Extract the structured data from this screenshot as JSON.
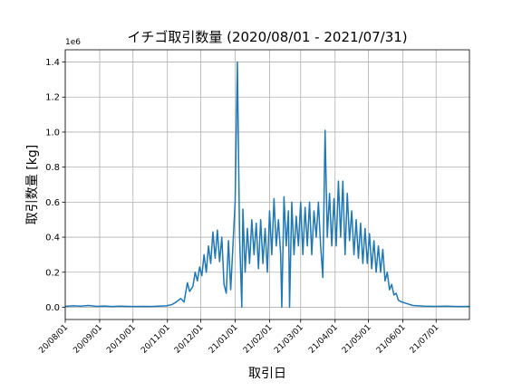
{
  "chart_data": {
    "type": "line",
    "title": "イチゴ取引数量 (2020/08/01 - 2021/07/31)",
    "x_label": "取引日",
    "y_label": "取引数量 [kg]",
    "y_offset_label": "1e6",
    "x": [
      "2020-08-01",
      "2020-08-08",
      "2020-08-15",
      "2020-08-22",
      "2020-08-29",
      "2020-09-05",
      "2020-09-12",
      "2020-09-19",
      "2020-09-26",
      "2020-10-03",
      "2020-10-10",
      "2020-10-17",
      "2020-10-24",
      "2020-10-31",
      "2020-11-05",
      "2020-11-09",
      "2020-11-13",
      "2020-11-16",
      "2020-11-19",
      "2020-11-21",
      "2020-11-24",
      "2020-11-26",
      "2020-11-28",
      "2020-11-30",
      "2020-12-02",
      "2020-12-04",
      "2020-12-06",
      "2020-12-08",
      "2020-12-10",
      "2020-12-12",
      "2020-12-14",
      "2020-12-16",
      "2020-12-18",
      "2020-12-20",
      "2020-12-22",
      "2020-12-24",
      "2020-12-26",
      "2020-12-28",
      "2020-12-30",
      "2021-01-01",
      "2021-01-03",
      "2021-01-05",
      "2021-01-07",
      "2021-01-08",
      "2021-01-10",
      "2021-01-12",
      "2021-01-14",
      "2021-01-16",
      "2021-01-18",
      "2021-01-20",
      "2021-01-22",
      "2021-01-24",
      "2021-01-26",
      "2021-01-28",
      "2021-01-30",
      "2021-02-01",
      "2021-02-03",
      "2021-02-05",
      "2021-02-07",
      "2021-02-09",
      "2021-02-11",
      "2021-02-12",
      "2021-02-14",
      "2021-02-16",
      "2021-02-18",
      "2021-02-19",
      "2021-02-21",
      "2021-02-23",
      "2021-02-25",
      "2021-02-27",
      "2021-03-01",
      "2021-03-03",
      "2021-03-05",
      "2021-03-07",
      "2021-03-09",
      "2021-03-11",
      "2021-03-13",
      "2021-03-15",
      "2021-03-17",
      "2021-03-19",
      "2021-03-21",
      "2021-03-23",
      "2021-03-25",
      "2021-03-27",
      "2021-03-29",
      "2021-03-31",
      "2021-04-02",
      "2021-04-04",
      "2021-04-06",
      "2021-04-08",
      "2021-04-10",
      "2021-04-12",
      "2021-04-14",
      "2021-04-16",
      "2021-04-18",
      "2021-04-20",
      "2021-04-22",
      "2021-04-24",
      "2021-04-26",
      "2021-04-28",
      "2021-04-30",
      "2021-05-02",
      "2021-05-04",
      "2021-05-06",
      "2021-05-08",
      "2021-05-10",
      "2021-05-12",
      "2021-05-14",
      "2021-05-16",
      "2021-05-18",
      "2021-05-20",
      "2021-05-22",
      "2021-05-24",
      "2021-05-26",
      "2021-05-28",
      "2021-05-31",
      "2021-06-05",
      "2021-06-10",
      "2021-06-15",
      "2021-06-20",
      "2021-06-30",
      "2021-07-10",
      "2021-07-20",
      "2021-07-31"
    ],
    "series": [
      {
        "name": "取引数量",
        "color": "#1f77b4",
        "values": [
          5000,
          8000,
          6000,
          10000,
          5000,
          7000,
          4000,
          6000,
          5000,
          4000,
          5000,
          4000,
          6000,
          8000,
          15000,
          30000,
          50000,
          30000,
          140000,
          90000,
          120000,
          200000,
          150000,
          230000,
          180000,
          300000,
          200000,
          350000,
          250000,
          430000,
          280000,
          440000,
          260000,
          400000,
          130000,
          80000,
          380000,
          100000,
          350000,
          600000,
          1400000,
          400000,
          0,
          560000,
          200000,
          450000,
          250000,
          500000,
          300000,
          480000,
          220000,
          500000,
          250000,
          450000,
          200000,
          550000,
          300000,
          620000,
          350000,
          500000,
          300000,
          0,
          630000,
          350000,
          550000,
          0,
          600000,
          300000,
          520000,
          350000,
          600000,
          300000,
          570000,
          350000,
          600000,
          300000,
          550000,
          400000,
          600000,
          350000,
          170000,
          1010000,
          400000,
          650000,
          350000,
          620000,
          350000,
          720000,
          400000,
          720000,
          300000,
          650000,
          380000,
          550000,
          300000,
          500000,
          280000,
          480000,
          250000,
          450000,
          250000,
          420000,
          220000,
          380000,
          200000,
          350000,
          200000,
          330000,
          150000,
          200000,
          100000,
          130000,
          70000,
          80000,
          40000,
          30000,
          20000,
          10000,
          8000,
          6000,
          5000,
          6000,
          4000,
          5000
        ]
      }
    ],
    "xlim": [
      "2020-08-01",
      "2021-07-31"
    ],
    "xticks": [
      {
        "value": "2020-08-01",
        "label": "20/08/01"
      },
      {
        "value": "2020-09-01",
        "label": "20/09/01"
      },
      {
        "value": "2020-10-01",
        "label": "20/10/01"
      },
      {
        "value": "2020-11-01",
        "label": "20/11/01"
      },
      {
        "value": "2020-12-01",
        "label": "20/12/01"
      },
      {
        "value": "2021-01-01",
        "label": "21/01/01"
      },
      {
        "value": "2021-02-01",
        "label": "21/02/01"
      },
      {
        "value": "2021-03-01",
        "label": "21/03/01"
      },
      {
        "value": "2021-04-01",
        "label": "21/04/01"
      },
      {
        "value": "2021-05-01",
        "label": "21/05/01"
      },
      {
        "value": "2021-06-01",
        "label": "21/06/01"
      },
      {
        "value": "2021-07-01",
        "label": "21/07/01"
      }
    ],
    "ylim": [
      -70000,
      1470000
    ],
    "yticks": [
      {
        "value": 0,
        "label": "0.0"
      },
      {
        "value": 200000,
        "label": "0.2"
      },
      {
        "value": 400000,
        "label": "0.4"
      },
      {
        "value": 600000,
        "label": "0.6"
      },
      {
        "value": 800000,
        "label": "0.8"
      },
      {
        "value": 1000000,
        "label": "1.0"
      },
      {
        "value": 1200000,
        "label": "1.2"
      },
      {
        "value": 1400000,
        "label": "1.4"
      }
    ],
    "grid": true
  }
}
